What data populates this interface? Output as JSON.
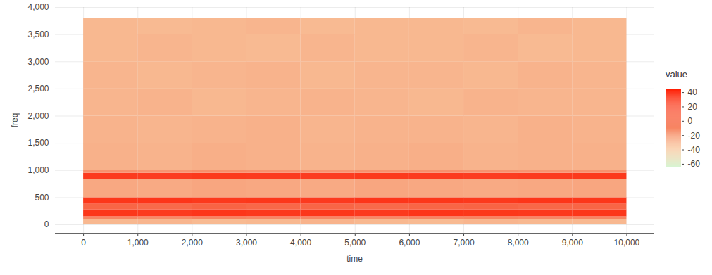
{
  "chart_data": {
    "type": "heatmap",
    "x_label": "time",
    "y_label": "freq",
    "xlim": [
      -520,
      10500
    ],
    "ylim": [
      -155,
      4000
    ],
    "xticks": [
      0,
      {
        "value": 1000,
        "label": "1,000"
      },
      {
        "value": 2000,
        "label": "2,000"
      },
      {
        "value": 3000,
        "label": "3,000"
      },
      {
        "value": 4000,
        "label": "4,000"
      },
      {
        "value": 5000,
        "label": "5,000"
      },
      {
        "value": 6000,
        "label": "6,000"
      },
      {
        "value": 7000,
        "label": "7,000"
      },
      {
        "value": 8000,
        "label": "8,000"
      },
      {
        "value": 9000,
        "label": "9,000"
      },
      {
        "value": 10000,
        "label": "10,000"
      }
    ],
    "yticks": [
      0,
      500,
      {
        "value": 1000,
        "label": "1,000"
      },
      {
        "value": 1500,
        "label": "1,500"
      },
      {
        "value": 2000,
        "label": "2,000"
      },
      {
        "value": 2500,
        "label": "2,500"
      },
      {
        "value": 3000,
        "label": "3,000"
      },
      {
        "value": 3500,
        "label": "3,500"
      },
      {
        "value": 4000,
        "label": "4,000"
      }
    ],
    "grid": true,
    "cells": {
      "time_bins": [
        0,
        1000,
        2000,
        3000,
        4000,
        5000,
        6000,
        7000,
        8000,
        9000,
        10000
      ],
      "freq_bins": [
        0,
        100,
        150,
        280,
        380,
        500,
        830,
        950,
        1000,
        1500,
        2000,
        2500,
        3000,
        3500,
        3800
      ],
      "values": [
        [
          -32,
          -31,
          -33,
          -32,
          -30,
          -32,
          -33,
          -31,
          -32,
          -32
        ],
        [
          -10,
          -12,
          -9,
          -11,
          -10,
          -12,
          -10,
          -9,
          -11,
          -10
        ],
        [
          30,
          28,
          31,
          29,
          30,
          28,
          31,
          30,
          29,
          30
        ],
        [
          5,
          3,
          6,
          4,
          5,
          3,
          5,
          6,
          4,
          5
        ],
        [
          30,
          31,
          29,
          30,
          28,
          31,
          30,
          29,
          31,
          30
        ],
        [
          -25,
          -26,
          -24,
          -25,
          -26,
          -24,
          -25,
          -26,
          -25,
          -24
        ],
        [
          28,
          27,
          29,
          28,
          27,
          29,
          28,
          27,
          28,
          29
        ],
        [
          -15,
          -16,
          -14,
          -15,
          -16,
          -15,
          -14,
          -15,
          -16,
          -15
        ],
        [
          -29,
          -30,
          -28,
          -29,
          -30,
          -29,
          -28,
          -30,
          -29,
          -29
        ],
        [
          -30,
          -31,
          -30,
          -29,
          -31,
          -30,
          -30,
          -31,
          -29,
          -30
        ],
        [
          -31,
          -30,
          -32,
          -31,
          -30,
          -31,
          -32,
          -30,
          -31,
          -31
        ],
        [
          -31,
          -32,
          -31,
          -30,
          -32,
          -31,
          -31,
          -32,
          -30,
          -31
        ],
        [
          -32,
          -31,
          -32,
          -33,
          -31,
          -32,
          -32,
          -31,
          -33,
          -32
        ],
        [
          -32,
          -33,
          -32,
          -31,
          -33,
          -32,
          -32,
          -33,
          -31,
          -32
        ]
      ]
    },
    "colorbar": {
      "label": "value",
      "range": [
        -65,
        45
      ],
      "ticks": [
        -60,
        -40,
        -20,
        0,
        20,
        40
      ]
    }
  }
}
